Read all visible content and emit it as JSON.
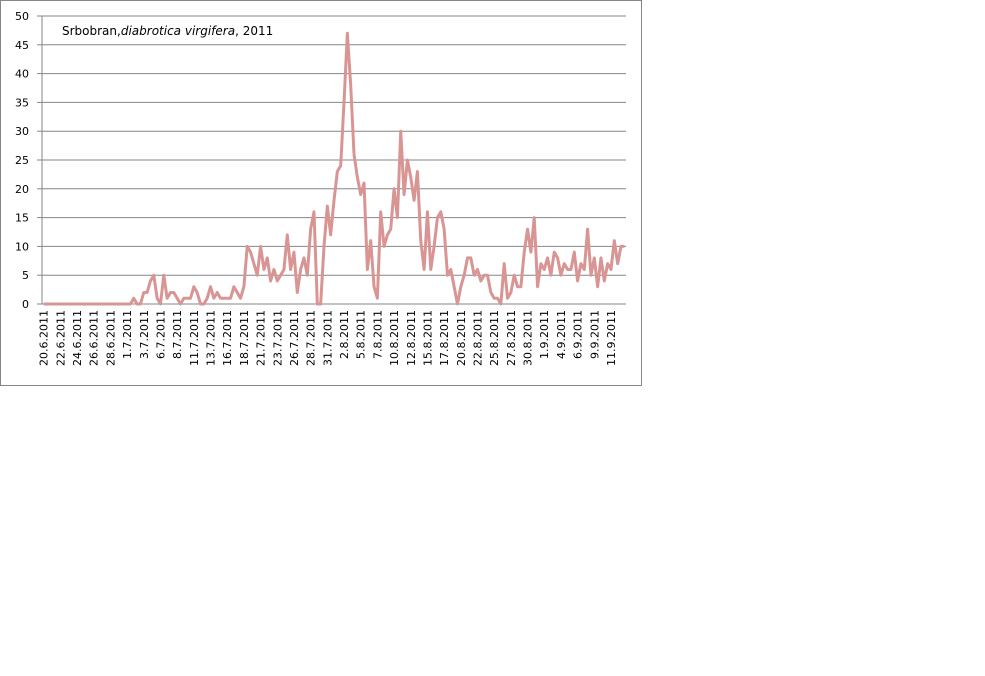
{
  "chart_data": {
    "type": "line",
    "title": [
      "Srbobran,",
      "diabrotica virgifera",
      ", 2011"
    ],
    "categories": [
      "20.6.2011",
      null,
      null,
      null,
      null,
      "22.6.2011",
      null,
      null,
      null,
      null,
      "24.6.2011",
      null,
      null,
      null,
      null,
      "26.6.2011",
      null,
      null,
      null,
      null,
      "28.6.2011",
      null,
      null,
      null,
      null,
      "1.7.2011",
      null,
      null,
      null,
      null,
      "3.7.2011",
      null,
      null,
      null,
      null,
      "6.7.2011",
      null,
      null,
      null,
      null,
      "8.7.2011",
      null,
      null,
      null,
      null,
      "11.7.2011",
      null,
      null,
      null,
      null,
      "13.7.2011",
      null,
      null,
      null,
      null,
      "16.7.2011",
      null,
      null,
      null,
      null,
      "18.7.2011",
      null,
      null,
      null,
      null,
      "21.7.2011",
      null,
      null,
      null,
      null,
      "23.7.2011",
      null,
      null,
      null,
      null,
      "26.7.2011",
      null,
      null,
      null,
      null,
      "28.7.2011",
      null,
      null,
      null,
      null,
      "31.7.2011",
      null,
      null,
      null,
      null,
      "2.8.2011",
      null,
      null,
      null,
      null,
      "5.8.2011",
      null,
      null,
      null,
      null,
      "7.8.2011",
      null,
      null,
      null,
      null,
      "10.8.2011",
      null,
      null,
      null,
      null,
      "12.8.2011",
      null,
      null,
      null,
      null,
      "15.8.2011",
      null,
      null,
      null,
      null,
      "17.8.2011",
      null,
      null,
      null,
      null,
      "20.8.2011",
      null,
      null,
      null,
      null,
      "22.8.2011",
      null,
      null,
      null,
      null,
      "25.8.2011",
      null,
      null,
      null,
      null,
      "27.8.2011",
      null,
      null,
      null,
      null,
      "30.8.2011",
      null,
      null,
      null,
      null,
      "1.9.2011",
      null,
      null,
      null,
      null,
      "4.9.2011",
      null,
      null,
      null,
      null,
      "6.9.2011",
      null,
      null,
      null,
      null,
      "9.9.2011",
      null,
      null,
      null,
      null,
      "11.9.2011",
      null,
      null,
      null,
      null
    ],
    "values": [
      0,
      0,
      0,
      0,
      0,
      0,
      0,
      0,
      0,
      0,
      0,
      0,
      0,
      0,
      0,
      0,
      0,
      0,
      0,
      0,
      0,
      0,
      0,
      0,
      0,
      0,
      0,
      1,
      0,
      0,
      2,
      2,
      4,
      5,
      1,
      0,
      5,
      1,
      2,
      2,
      1,
      0,
      1,
      1,
      1,
      3,
      2,
      0,
      0,
      1,
      3,
      1,
      2,
      1,
      1,
      1,
      1,
      3,
      2,
      1,
      3,
      10,
      9,
      7,
      5,
      10,
      6,
      8,
      4,
      6,
      4,
      5,
      6,
      12,
      6,
      9,
      2,
      6,
      8,
      5,
      13,
      16,
      0,
      0,
      10,
      17,
      12,
      18,
      23,
      24,
      35,
      47,
      38,
      26,
      22,
      19,
      21,
      6,
      11,
      3,
      1,
      16,
      10,
      12,
      13,
      20,
      15,
      30,
      19,
      25,
      22,
      18,
      23,
      11,
      6,
      16,
      6,
      10,
      15,
      16,
      13,
      5,
      6,
      3,
      0,
      3,
      5,
      8,
      8,
      5,
      6,
      4,
      5,
      5,
      2,
      1,
      1,
      0,
      7,
      1,
      2,
      5,
      3,
      3,
      9,
      13,
      9,
      15,
      3,
      7,
      6,
      8,
      5,
      9,
      8,
      5,
      7,
      6,
      6,
      9,
      4,
      7,
      6,
      13,
      5,
      8,
      3,
      8,
      4,
      7,
      6,
      11,
      7,
      10,
      10
    ],
    "color": "#d99594",
    "ylim": [
      0,
      50
    ],
    "yticks": [
      0,
      5,
      10,
      15,
      20,
      25,
      30,
      35,
      40,
      45,
      50
    ],
    "grid": true
  }
}
